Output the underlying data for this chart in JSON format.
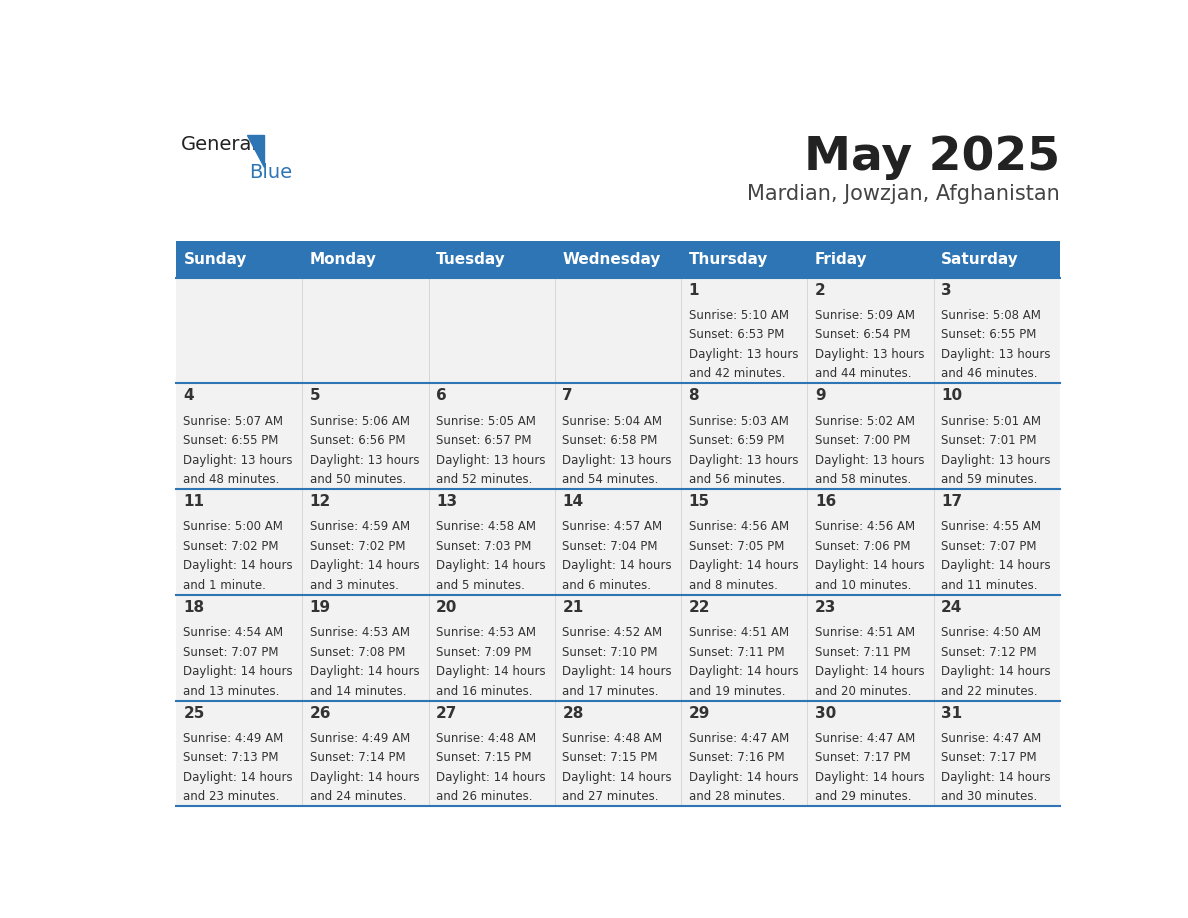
{
  "title": "May 2025",
  "subtitle": "Mardian, Jowzjan, Afghanistan",
  "header_color": "#2E75B6",
  "header_text_color": "#FFFFFF",
  "cell_bg_color": "#F2F2F2",
  "day_number_color": "#333333",
  "text_color": "#333333",
  "line_color": "#2E75B6",
  "days_of_week": [
    "Sunday",
    "Monday",
    "Tuesday",
    "Wednesday",
    "Thursday",
    "Friday",
    "Saturday"
  ],
  "weeks": [
    [
      {
        "day": null,
        "sunrise": null,
        "sunset": null,
        "daylight": null
      },
      {
        "day": null,
        "sunrise": null,
        "sunset": null,
        "daylight": null
      },
      {
        "day": null,
        "sunrise": null,
        "sunset": null,
        "daylight": null
      },
      {
        "day": null,
        "sunrise": null,
        "sunset": null,
        "daylight": null
      },
      {
        "day": 1,
        "sunrise": "5:10 AM",
        "sunset": "6:53 PM",
        "daylight": "13 hours\nand 42 minutes."
      },
      {
        "day": 2,
        "sunrise": "5:09 AM",
        "sunset": "6:54 PM",
        "daylight": "13 hours\nand 44 minutes."
      },
      {
        "day": 3,
        "sunrise": "5:08 AM",
        "sunset": "6:55 PM",
        "daylight": "13 hours\nand 46 minutes."
      }
    ],
    [
      {
        "day": 4,
        "sunrise": "5:07 AM",
        "sunset": "6:55 PM",
        "daylight": "13 hours\nand 48 minutes."
      },
      {
        "day": 5,
        "sunrise": "5:06 AM",
        "sunset": "6:56 PM",
        "daylight": "13 hours\nand 50 minutes."
      },
      {
        "day": 6,
        "sunrise": "5:05 AM",
        "sunset": "6:57 PM",
        "daylight": "13 hours\nand 52 minutes."
      },
      {
        "day": 7,
        "sunrise": "5:04 AM",
        "sunset": "6:58 PM",
        "daylight": "13 hours\nand 54 minutes."
      },
      {
        "day": 8,
        "sunrise": "5:03 AM",
        "sunset": "6:59 PM",
        "daylight": "13 hours\nand 56 minutes."
      },
      {
        "day": 9,
        "sunrise": "5:02 AM",
        "sunset": "7:00 PM",
        "daylight": "13 hours\nand 58 minutes."
      },
      {
        "day": 10,
        "sunrise": "5:01 AM",
        "sunset": "7:01 PM",
        "daylight": "13 hours\nand 59 minutes."
      }
    ],
    [
      {
        "day": 11,
        "sunrise": "5:00 AM",
        "sunset": "7:02 PM",
        "daylight": "14 hours\nand 1 minute."
      },
      {
        "day": 12,
        "sunrise": "4:59 AM",
        "sunset": "7:02 PM",
        "daylight": "14 hours\nand 3 minutes."
      },
      {
        "day": 13,
        "sunrise": "4:58 AM",
        "sunset": "7:03 PM",
        "daylight": "14 hours\nand 5 minutes."
      },
      {
        "day": 14,
        "sunrise": "4:57 AM",
        "sunset": "7:04 PM",
        "daylight": "14 hours\nand 6 minutes."
      },
      {
        "day": 15,
        "sunrise": "4:56 AM",
        "sunset": "7:05 PM",
        "daylight": "14 hours\nand 8 minutes."
      },
      {
        "day": 16,
        "sunrise": "4:56 AM",
        "sunset": "7:06 PM",
        "daylight": "14 hours\nand 10 minutes."
      },
      {
        "day": 17,
        "sunrise": "4:55 AM",
        "sunset": "7:07 PM",
        "daylight": "14 hours\nand 11 minutes."
      }
    ],
    [
      {
        "day": 18,
        "sunrise": "4:54 AM",
        "sunset": "7:07 PM",
        "daylight": "14 hours\nand 13 minutes."
      },
      {
        "day": 19,
        "sunrise": "4:53 AM",
        "sunset": "7:08 PM",
        "daylight": "14 hours\nand 14 minutes."
      },
      {
        "day": 20,
        "sunrise": "4:53 AM",
        "sunset": "7:09 PM",
        "daylight": "14 hours\nand 16 minutes."
      },
      {
        "day": 21,
        "sunrise": "4:52 AM",
        "sunset": "7:10 PM",
        "daylight": "14 hours\nand 17 minutes."
      },
      {
        "day": 22,
        "sunrise": "4:51 AM",
        "sunset": "7:11 PM",
        "daylight": "14 hours\nand 19 minutes."
      },
      {
        "day": 23,
        "sunrise": "4:51 AM",
        "sunset": "7:11 PM",
        "daylight": "14 hours\nand 20 minutes."
      },
      {
        "day": 24,
        "sunrise": "4:50 AM",
        "sunset": "7:12 PM",
        "daylight": "14 hours\nand 22 minutes."
      }
    ],
    [
      {
        "day": 25,
        "sunrise": "4:49 AM",
        "sunset": "7:13 PM",
        "daylight": "14 hours\nand 23 minutes."
      },
      {
        "day": 26,
        "sunrise": "4:49 AM",
        "sunset": "7:14 PM",
        "daylight": "14 hours\nand 24 minutes."
      },
      {
        "day": 27,
        "sunrise": "4:48 AM",
        "sunset": "7:15 PM",
        "daylight": "14 hours\nand 26 minutes."
      },
      {
        "day": 28,
        "sunrise": "4:48 AM",
        "sunset": "7:15 PM",
        "daylight": "14 hours\nand 27 minutes."
      },
      {
        "day": 29,
        "sunrise": "4:47 AM",
        "sunset": "7:16 PM",
        "daylight": "14 hours\nand 28 minutes."
      },
      {
        "day": 30,
        "sunrise": "4:47 AM",
        "sunset": "7:17 PM",
        "daylight": "14 hours\nand 29 minutes."
      },
      {
        "day": 31,
        "sunrise": "4:47 AM",
        "sunset": "7:17 PM",
        "daylight": "14 hours\nand 30 minutes."
      }
    ]
  ]
}
